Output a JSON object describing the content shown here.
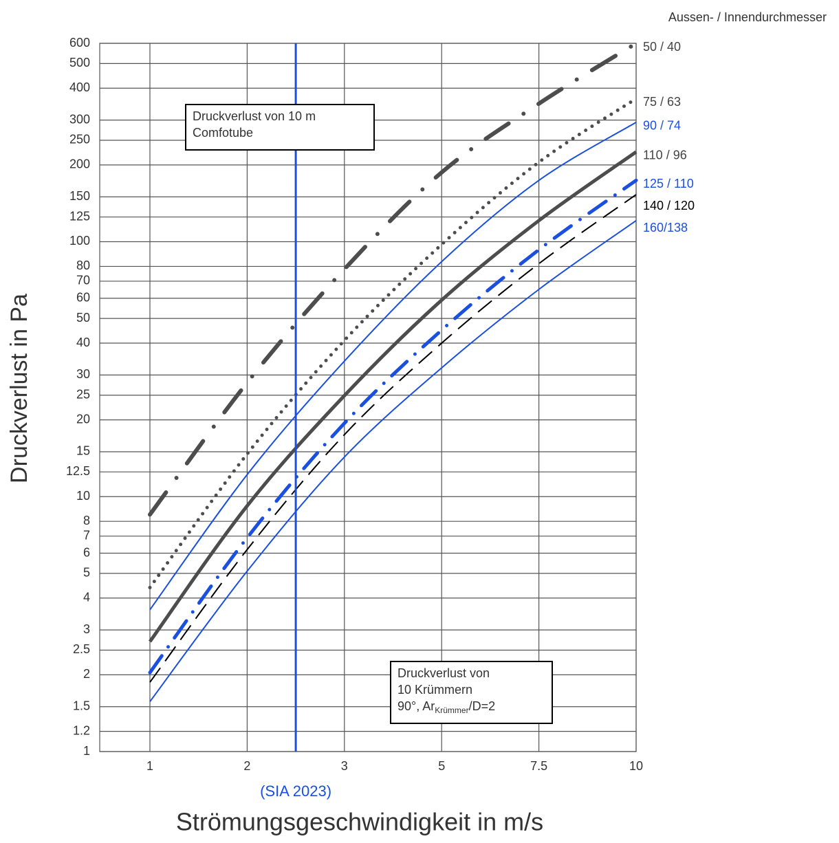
{
  "chart_data": {
    "type": "line",
    "y_label": "Druckverlust in Pa",
    "x_label": "Strömungsgeschwindigkeit in m/s",
    "legend_title": "Aussen- / Innendurchmesser",
    "log_y": true,
    "grid": true,
    "x": [
      1,
      2,
      3,
      5,
      7.5,
      10
    ],
    "xlim": [
      1,
      10
    ],
    "xticks": [
      1,
      2,
      3,
      5,
      7.5,
      10
    ],
    "ylim": [
      1,
      600
    ],
    "yticks": [
      1,
      1.2,
      1.5,
      2,
      2.5,
      3,
      4,
      5,
      6,
      7,
      8,
      10,
      12.5,
      15,
      20,
      25,
      30,
      40,
      50,
      60,
      70,
      80,
      100,
      125,
      150,
      200,
      250,
      300,
      400,
      500,
      600
    ],
    "series": [
      {
        "name": "50 / 40",
        "color": "#4d4d4d",
        "style": "dashdot-thick",
        "values": [
          8.5,
          28,
          78,
          187,
          348,
          600
        ]
      },
      {
        "name": "75 / 63",
        "color": "#4d4d4d",
        "style": "dotted",
        "values": [
          4.4,
          14.7,
          41,
          97.5,
          205,
          364
        ]
      },
      {
        "name": "90 / 74",
        "color": "#1a4fe0",
        "style": "solid-thin",
        "values": [
          3.6,
          12.2,
          34,
          83.5,
          174,
          294
        ]
      },
      {
        "name": "110 / 96",
        "color": "#4d4d4d",
        "style": "solid-thick",
        "values": [
          2.7,
          9.2,
          24.9,
          59,
          121,
          225
        ]
      },
      {
        "name": "125 / 110",
        "color": "#1a4fe0",
        "style": "dashdot-blue",
        "values": [
          2.04,
          6.9,
          19.4,
          45,
          93,
          174
        ]
      },
      {
        "name": "140 / 120",
        "color": "#000000",
        "style": "dashed-thin",
        "values": [
          1.87,
          6.2,
          17.5,
          40,
          82,
          153
        ]
      },
      {
        "name": "160/138",
        "color": "#1a4fe0",
        "style": "solid-thin",
        "values": [
          1.57,
          5.1,
          14.3,
          32,
          65,
          121
        ]
      }
    ],
    "vline": {
      "x": 2.5,
      "label": "(SIA 2023)",
      "color": "#1a4fe0"
    },
    "annotations": [
      {
        "lines": [
          "Druckverlust von 10 m",
          "Comfotube"
        ]
      },
      {
        "lines": [
          "Druckverlust von",
          "10 Krümmern"
        ],
        "formula": [
          "90°, Ar",
          "Krümmer",
          "/D=2"
        ]
      }
    ]
  }
}
